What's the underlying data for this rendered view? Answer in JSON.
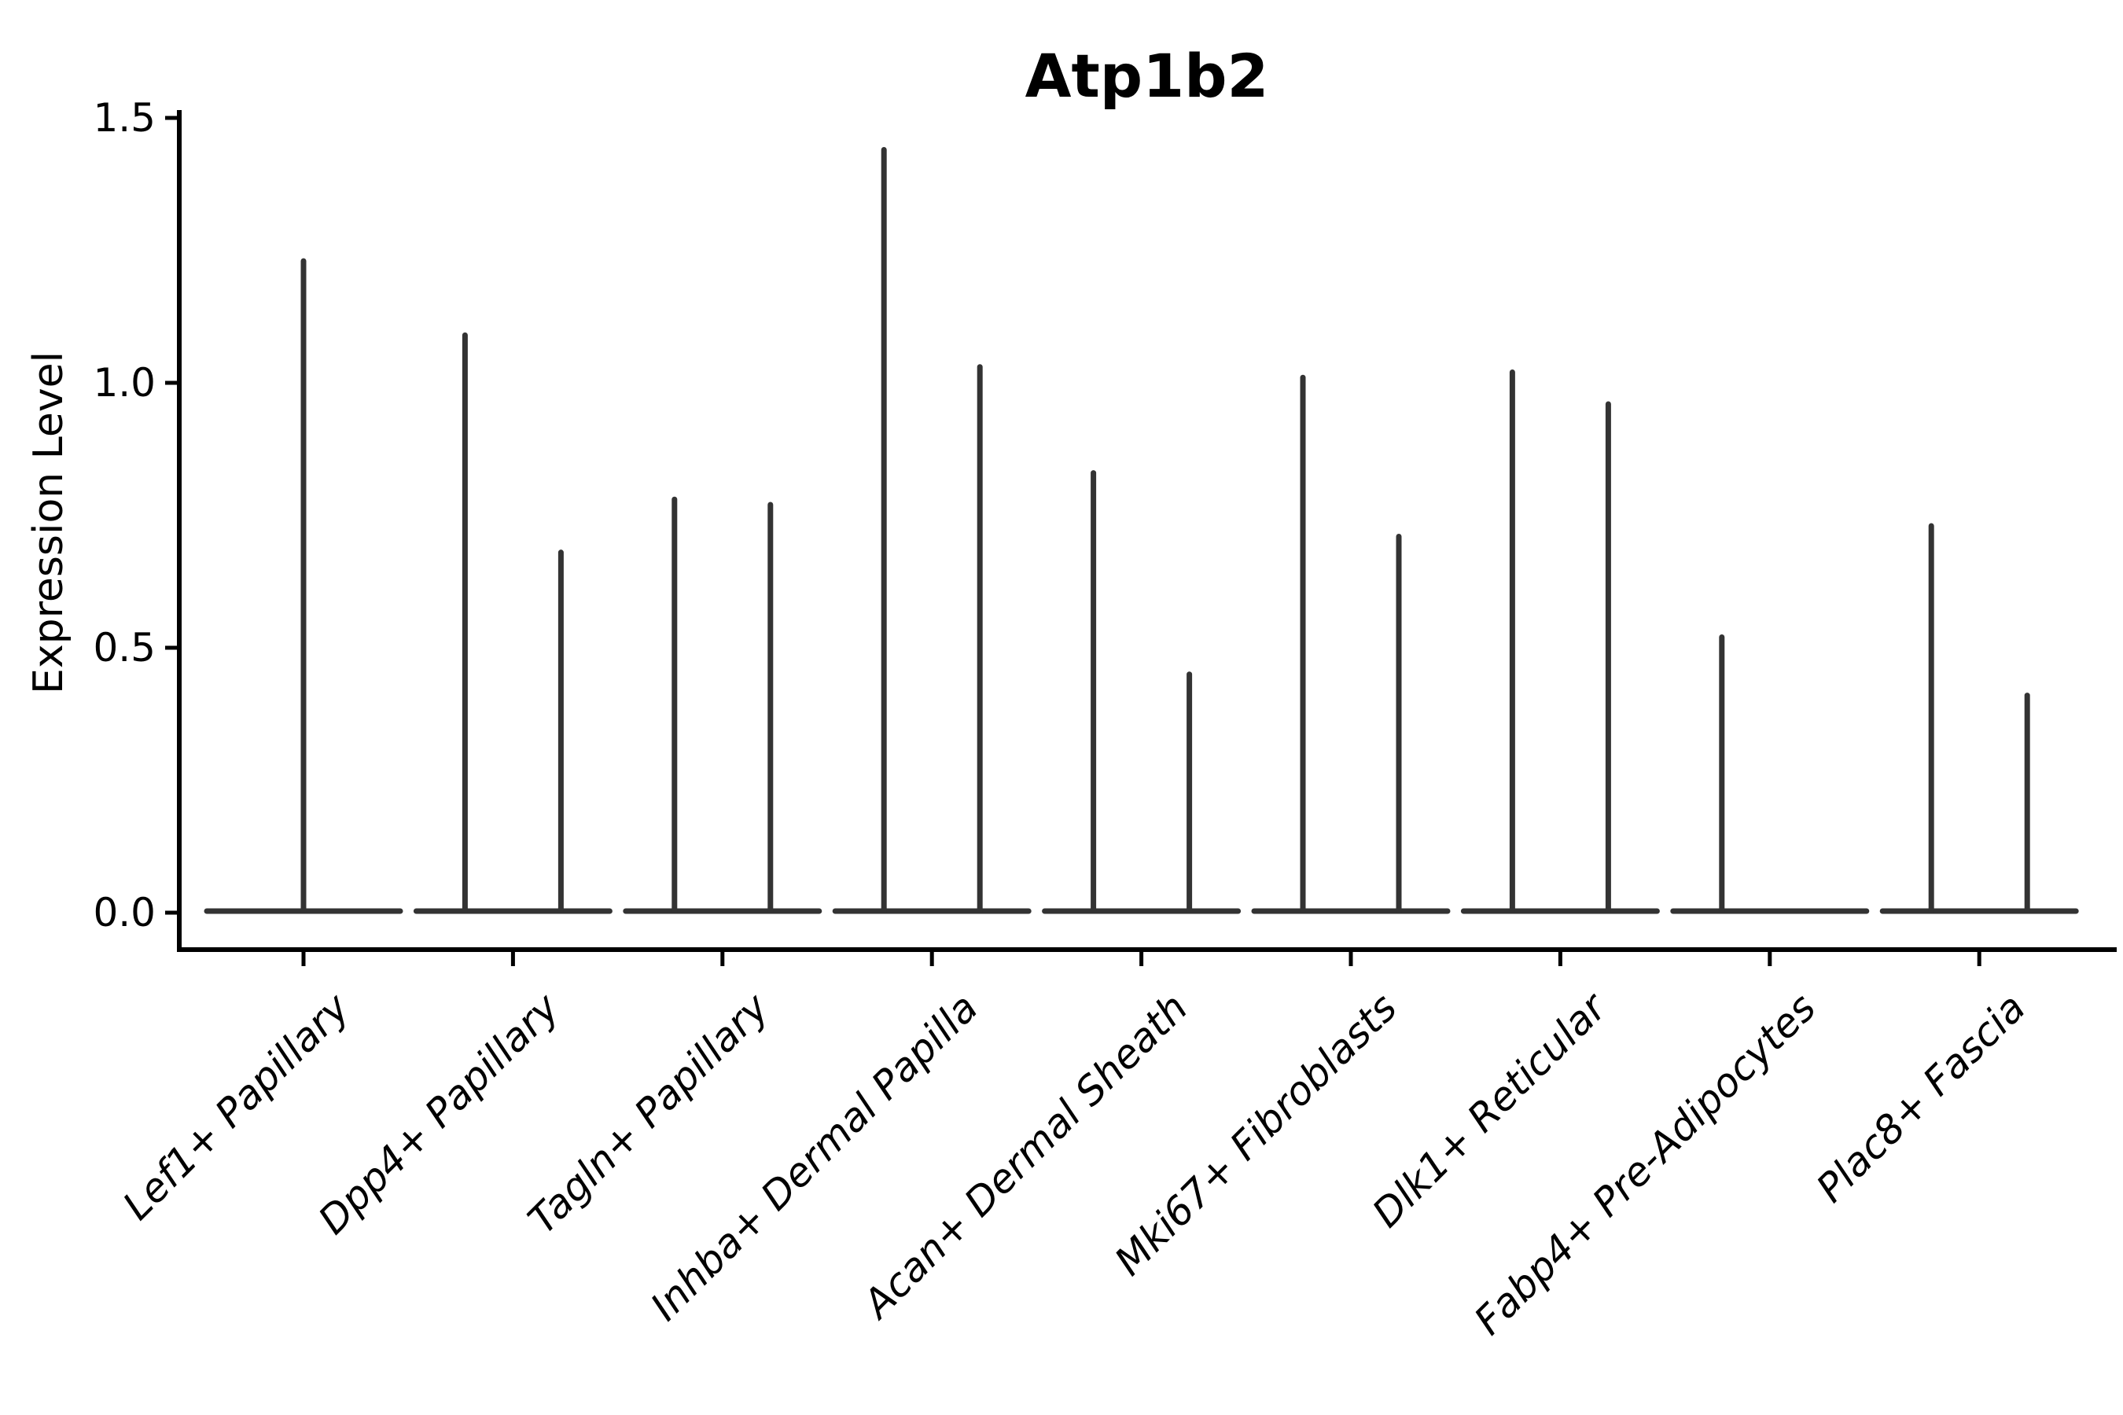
{
  "title": "Atp1b2",
  "y_axis": {
    "label": "Expression Level"
  },
  "chart_data": {
    "type": "violin",
    "title": "Atp1b2",
    "xlabel": "",
    "ylabel": "Expression Level",
    "grid": false,
    "legend": false,
    "ylim": [
      -0.07,
      1.515
    ],
    "yticks": [
      0.0,
      0.5,
      1.0,
      1.5
    ],
    "ytick_labels": [
      "0.0",
      "0.5",
      "1.0",
      "1.5"
    ],
    "baseline_value": 0.0,
    "categories": [
      "Lef1+ Papillary",
      "Dpp4+ Papillary",
      "Tagln+ Papillary",
      "Inhba+ Dermal Papilla",
      "Acan+ Dermal Sheath",
      "Mki67+ Fibroblasts",
      "Dlk1+ Reticular",
      "Fabp4+ Pre-Adipocytes",
      "Plac8+ Fascia"
    ],
    "violins": [
      {
        "category": "Lef1+ Papillary",
        "spikes": [
          {
            "side": "center",
            "peak": 1.23
          }
        ]
      },
      {
        "category": "Dpp4+ Papillary",
        "spikes": [
          {
            "side": "left",
            "peak": 1.09
          },
          {
            "side": "right",
            "peak": 0.68
          }
        ]
      },
      {
        "category": "Tagln+ Papillary",
        "spikes": [
          {
            "side": "left",
            "peak": 0.78
          },
          {
            "side": "right",
            "peak": 0.77
          }
        ]
      },
      {
        "category": "Inhba+ Dermal Papilla",
        "spikes": [
          {
            "side": "left",
            "peak": 1.44
          },
          {
            "side": "right",
            "peak": 1.03
          }
        ]
      },
      {
        "category": "Acan+ Dermal Sheath",
        "spikes": [
          {
            "side": "left",
            "peak": 0.83
          },
          {
            "side": "right",
            "peak": 0.45
          }
        ]
      },
      {
        "category": "Mki67+ Fibroblasts",
        "spikes": [
          {
            "side": "left",
            "peak": 1.01
          },
          {
            "side": "right",
            "peak": 0.71
          }
        ]
      },
      {
        "category": "Dlk1+ Reticular",
        "spikes": [
          {
            "side": "left",
            "peak": 1.02
          },
          {
            "side": "right",
            "peak": 0.96
          }
        ]
      },
      {
        "category": "Fabp4+ Pre-Adipocytes",
        "spikes": [
          {
            "side": "left",
            "peak": 0.52
          }
        ]
      },
      {
        "category": "Plac8+ Fascia",
        "spikes": [
          {
            "side": "left",
            "peak": 0.73
          },
          {
            "side": "right",
            "peak": 0.41
          }
        ]
      }
    ],
    "colors": {
      "violin": "#333333",
      "spine": "#000000",
      "text": "#000000",
      "background": "#ffffff"
    }
  }
}
